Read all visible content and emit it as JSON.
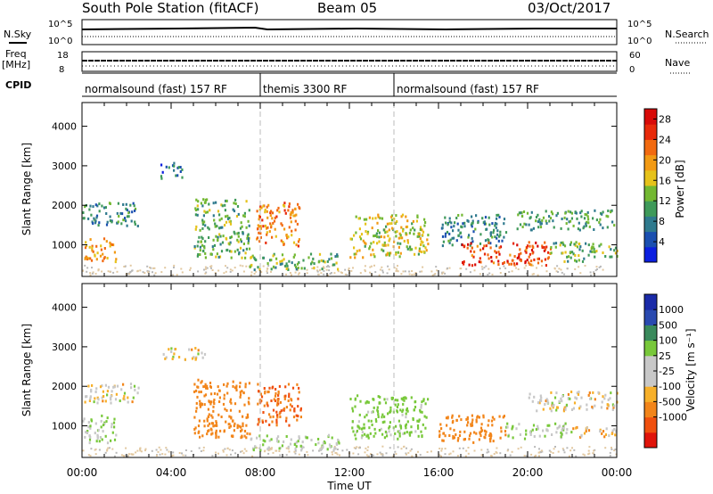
{
  "header": {
    "station": "South Pole Station (fitACF)",
    "beam": "Beam 05",
    "date": "03/Oct/2017"
  },
  "left_labels": {
    "nsky": "N.Sky",
    "nsky_top": "10^5",
    "nsky_bottom": "10^0",
    "freq_line1": "Freq",
    "freq_line2": "[MHz]",
    "freq_top": "18",
    "freq_bottom": "8",
    "cpid": "CPID"
  },
  "right_labels": {
    "nsearch": "N.Search",
    "nsearch_top": "10^5",
    "nsearch_bottom": "10^0",
    "nave": "Nave",
    "nave_top": "60",
    "nave_bottom": "0"
  },
  "cpid_segments": [
    {
      "label": "normalsound (fast) 157 RF",
      "start_hour": 0
    },
    {
      "label": "themis 3300 RF",
      "start_hour": 8
    },
    {
      "label": "normalsound (fast) 157 RF",
      "start_hour": 14
    }
  ],
  "colors": {
    "power_scale": [
      "#0b1fe0",
      "#1a4fb0",
      "#2f7a8e",
      "#3f9a5a",
      "#73b832",
      "#e6c21a",
      "#f29a14",
      "#f26a10",
      "#e82a0a",
      "#d80a08"
    ],
    "velocity_scale": [
      "#e0140a",
      "#f0500e",
      "#f2851a",
      "#f7b02a",
      "#c8c8c8",
      "#c8c8c8",
      "#78c83a",
      "#3a8a5c",
      "#2a4ab0",
      "#1a2aa8"
    ]
  },
  "chart_data": [
    {
      "type": "heatmap",
      "title": "",
      "xlabel": "Time UT",
      "ylabel": "Slant Range [km]",
      "xlim_hours": [
        0,
        24
      ],
      "ylim": [
        200,
        4600
      ],
      "x_ticks": [
        "00:00",
        "04:00",
        "08:00",
        "12:00",
        "16:00",
        "20:00",
        "00:00"
      ],
      "y_ticks": [
        1000,
        2000,
        3000,
        4000
      ],
      "colorbar": {
        "label": "Power [dB]",
        "ticks": [
          4,
          8,
          12,
          16,
          20,
          24,
          28
        ],
        "range": [
          0,
          30
        ]
      },
      "regions": [
        {
          "t0": 0.0,
          "t1": 1.5,
          "r0": 600,
          "r1": 1200,
          "level": 20
        },
        {
          "t0": 0.0,
          "t1": 2.5,
          "r0": 1500,
          "r1": 2100,
          "level": 8
        },
        {
          "t0": 3.5,
          "t1": 4.5,
          "r0": 2700,
          "r1": 3100,
          "level": 6
        },
        {
          "t0": 5.0,
          "t1": 7.5,
          "r0": 700,
          "r1": 2200,
          "level": 12
        },
        {
          "t0": 7.8,
          "t1": 9.8,
          "r0": 1000,
          "r1": 2100,
          "level": 22
        },
        {
          "t0": 7.5,
          "t1": 11.5,
          "r0": 400,
          "r1": 800,
          "level": 12
        },
        {
          "t0": 12.0,
          "t1": 15.5,
          "r0": 700,
          "r1": 1800,
          "level": 16
        },
        {
          "t0": 16.0,
          "t1": 19.0,
          "r0": 1000,
          "r1": 1800,
          "level": 8
        },
        {
          "t0": 17.0,
          "t1": 21.0,
          "r0": 500,
          "r1": 1100,
          "level": 26
        },
        {
          "t0": 19.5,
          "t1": 24.0,
          "r0": 1400,
          "r1": 1900,
          "level": 10
        },
        {
          "t0": 21.0,
          "t1": 24.0,
          "r0": 600,
          "r1": 1100,
          "level": 12
        }
      ]
    },
    {
      "type": "heatmap",
      "title": "",
      "xlabel": "Time UT",
      "ylabel": "Slant Range [km]",
      "xlim_hours": [
        0,
        24
      ],
      "ylim": [
        200,
        4600
      ],
      "x_ticks": [
        "00:00",
        "04:00",
        "08:00",
        "12:00",
        "16:00",
        "20:00",
        "00:00"
      ],
      "y_ticks": [
        1000,
        2000,
        3000,
        4000
      ],
      "colorbar": {
        "label": "Velocity [m s⁻¹]",
        "ticks": [
          1000,
          500,
          100,
          25,
          -25,
          -100,
          -500,
          -1000
        ]
      },
      "regions": [
        {
          "t0": 0.0,
          "t1": 1.5,
          "r0": 600,
          "r1": 1300,
          "level": 100
        },
        {
          "t0": 0.0,
          "t1": 2.5,
          "r0": 1600,
          "r1": 2100,
          "level": 0
        },
        {
          "t0": 3.5,
          "t1": 5.5,
          "r0": 2700,
          "r1": 3000,
          "level": 0
        },
        {
          "t0": 5.0,
          "t1": 7.5,
          "r0": 700,
          "r1": 2200,
          "level": -300
        },
        {
          "t0": 7.8,
          "t1": 9.8,
          "r0": 1000,
          "r1": 2100,
          "level": -500
        },
        {
          "t0": 7.5,
          "t1": 11.5,
          "r0": 400,
          "r1": 800,
          "level": 100
        },
        {
          "t0": 12.0,
          "t1": 15.5,
          "r0": 700,
          "r1": 1800,
          "level": 200
        },
        {
          "t0": 16.0,
          "t1": 19.0,
          "r0": 600,
          "r1": 1300,
          "level": -300
        },
        {
          "t0": 19.0,
          "t1": 22.0,
          "r0": 700,
          "r1": 1100,
          "level": 100
        },
        {
          "t0": 20.0,
          "t1": 24.0,
          "r0": 1400,
          "r1": 1900,
          "level": 0
        },
        {
          "t0": 22.0,
          "t1": 24.0,
          "r0": 700,
          "r1": 1000,
          "level": -80
        }
      ]
    }
  ]
}
